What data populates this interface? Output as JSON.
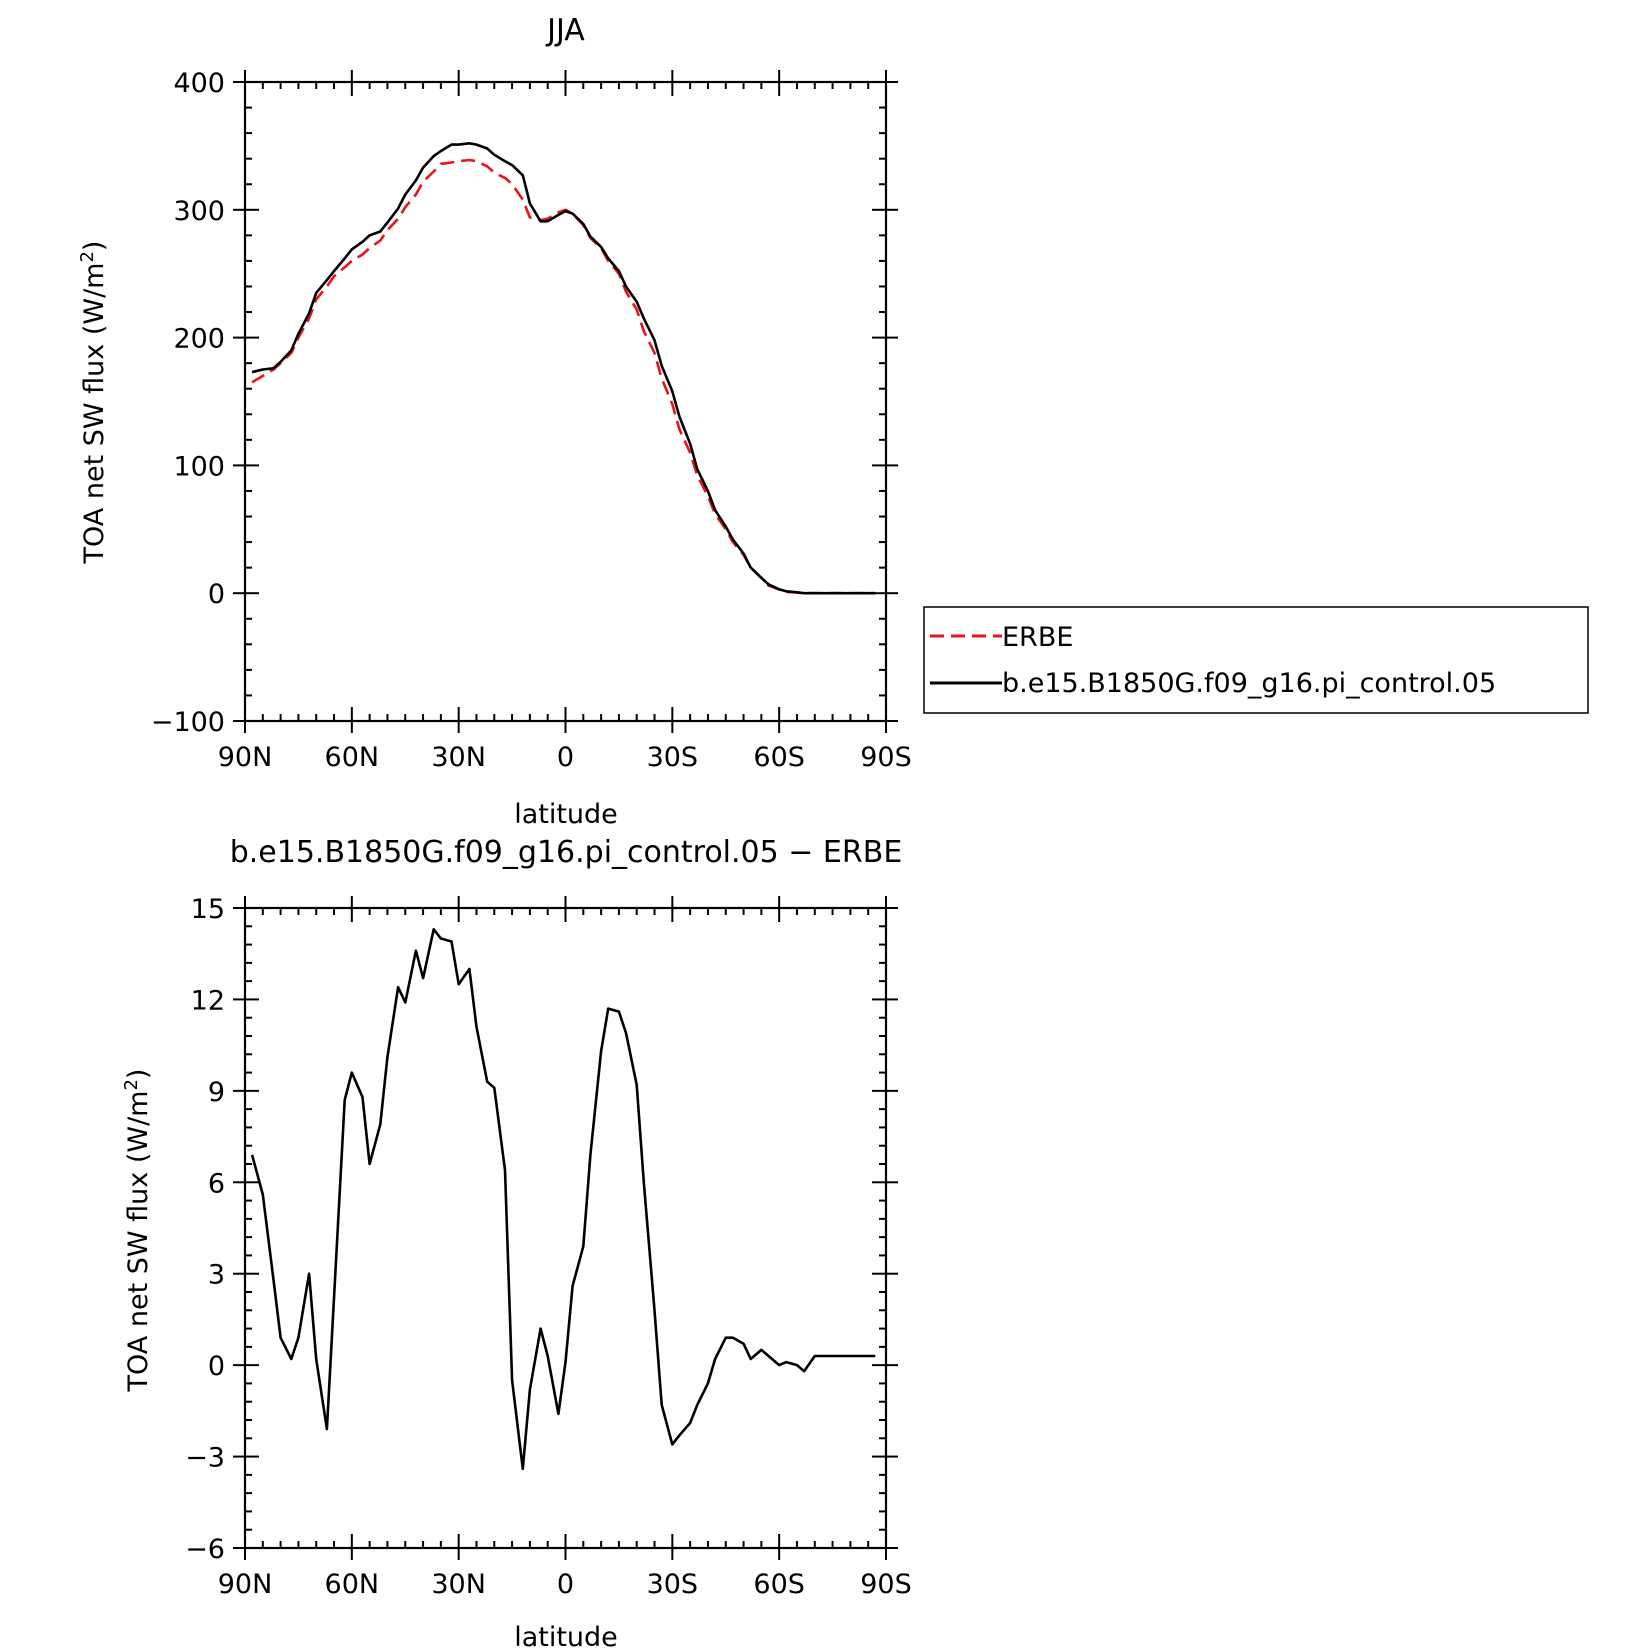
{
  "chart_data": [
    {
      "type": "line",
      "title": "JJA",
      "xlabel": "latitude",
      "ylabel": "TOA net SW flux (W/m²)",
      "ylabel_parts": {
        "pre": "TOA net SW flux (W/m",
        "sup": "2",
        "post": ")"
      },
      "xlim": [
        90,
        -90
      ],
      "ylim": [
        -100,
        400
      ],
      "xticks": [
        90,
        60,
        30,
        0,
        -30,
        -60,
        -90
      ],
      "xticklabels": [
        "90N",
        "60N",
        "30N",
        "0",
        "30S",
        "60S",
        "90S"
      ],
      "yticks": [
        -100,
        0,
        100,
        200,
        300,
        400
      ],
      "yticklabels": [
        "−100",
        "0",
        "100",
        "200",
        "300",
        "400"
      ],
      "grid": false,
      "legend": {
        "position": "right",
        "entries": [
          "ERBE",
          "b.e15.B1850G.f09_g16.pi_control.05"
        ]
      },
      "series": [
        {
          "name": "ERBE",
          "color": "#e8141b",
          "dash": "dashed",
          "x": [
            88,
            85,
            82,
            80,
            77,
            75,
            72,
            70,
            67,
            65,
            62,
            60,
            57,
            55,
            52,
            50,
            47,
            45,
            42,
            40,
            37,
            35,
            32,
            30,
            27,
            25,
            22,
            20,
            17,
            15,
            12,
            10,
            7,
            5,
            2,
            0,
            -2,
            -5,
            -7,
            -10,
            -12,
            -15,
            -17,
            -20,
            -22,
            -25,
            -27,
            -30,
            -32,
            -35,
            -37,
            -40,
            -42,
            -45,
            -47,
            -50,
            -52,
            -55,
            -57,
            -60,
            -62,
            -65,
            -67,
            -70,
            -72,
            -75,
            -77,
            -80,
            -82,
            -85,
            -87
          ],
          "y": [
            165,
            170,
            175,
            180,
            188,
            200,
            215,
            230,
            240,
            248,
            255,
            260,
            265,
            270,
            276,
            284,
            293,
            302,
            312,
            322,
            330,
            336,
            337,
            338,
            339,
            338,
            334,
            329,
            325,
            320,
            308,
            294,
            292,
            293,
            298,
            300,
            297,
            288,
            278,
            270,
            260,
            250,
            236,
            222,
            205,
            188,
            168,
            148,
            128,
            110,
            92,
            76,
            62,
            50,
            40,
            30,
            20,
            12,
            6,
            3,
            1,
            0.5,
            0,
            0,
            0,
            0,
            0,
            0,
            0,
            0,
            0
          ]
        },
        {
          "name": "b.e15.B1850G.f09_g16.pi_control.05",
          "color": "#000000",
          "dash": "solid",
          "x": [
            88,
            85,
            82,
            80,
            77,
            75,
            72,
            70,
            67,
            65,
            62,
            60,
            57,
            55,
            52,
            50,
            47,
            45,
            42,
            40,
            37,
            35,
            32,
            30,
            27,
            25,
            22,
            20,
            17,
            15,
            12,
            10,
            7,
            5,
            2,
            0,
            -2,
            -5,
            -7,
            -10,
            -12,
            -15,
            -17,
            -20,
            -22,
            -25,
            -27,
            -30,
            -32,
            -35,
            -37,
            -40,
            -42,
            -45,
            -47,
            -50,
            -52,
            -55,
            -57,
            -60,
            -62,
            -65,
            -67,
            -70,
            -72,
            -75,
            -77,
            -80,
            -82,
            -85,
            -87
          ],
          "y": [
            173,
            175,
            176,
            181,
            190,
            203,
            219,
            235,
            245,
            252,
            262,
            269,
            275,
            280,
            283,
            290,
            301,
            312,
            323,
            333,
            342,
            346,
            351,
            351,
            352,
            351,
            348,
            343,
            338,
            335,
            327,
            305,
            291,
            291,
            296,
            299,
            297,
            289,
            279,
            271,
            262,
            252,
            240,
            228,
            215,
            198,
            178,
            158,
            138,
            117,
            97,
            80,
            65,
            52,
            42,
            31,
            20,
            12,
            7,
            3,
            1.5,
            0.7,
            0,
            0,
            0,
            0,
            0,
            0,
            0,
            0,
            0
          ]
        }
      ]
    },
    {
      "type": "line",
      "title": "b.e15.B1850G.f09_g16.pi_control.05 − ERBE",
      "xlabel": "latitude",
      "ylabel": "TOA net SW flux (W/m²)",
      "ylabel_parts": {
        "pre": "TOA net SW flux (W/m",
        "sup": "2",
        "post": ")"
      },
      "xlim": [
        90,
        -90
      ],
      "ylim": [
        -6,
        15
      ],
      "xticks": [
        90,
        60,
        30,
        0,
        -30,
        -60,
        -90
      ],
      "xticklabels": [
        "90N",
        "60N",
        "30N",
        "0",
        "30S",
        "60S",
        "90S"
      ],
      "yticks": [
        -6,
        -3,
        0,
        3,
        6,
        9,
        12,
        15
      ],
      "yticklabels": [
        "−6",
        "−3",
        "0",
        "3",
        "6",
        "9",
        "12",
        "15"
      ],
      "grid": false,
      "series": [
        {
          "color": "#000000",
          "dash": "solid",
          "x": [
            88,
            85,
            82,
            80,
            77,
            75,
            72,
            70,
            67,
            65,
            62,
            60,
            57,
            55,
            52,
            50,
            47,
            45,
            42,
            40,
            37,
            35,
            32,
            30,
            27,
            25,
            22,
            20,
            17,
            15,
            12,
            10,
            7,
            5,
            2,
            0,
            -2,
            -5,
            -7,
            -10,
            -12,
            -15,
            -17,
            -20,
            -22,
            -25,
            -27,
            -30,
            -32,
            -35,
            -37,
            -40,
            -42,
            -45,
            -47,
            -50,
            -52,
            -55,
            -57,
            -60,
            -62,
            -65,
            -67,
            -70,
            -72,
            -75,
            -77,
            -80,
            -82,
            -85,
            -87
          ],
          "y": [
            6.9,
            5.6,
            2.8,
            0.9,
            0.2,
            0.9,
            3.0,
            0.2,
            -2.1,
            2.2,
            8.7,
            9.6,
            8.8,
            6.6,
            7.9,
            10.1,
            12.4,
            11.9,
            13.6,
            12.7,
            14.3,
            14.0,
            13.9,
            12.5,
            13.0,
            11.1,
            9.3,
            9.1,
            6.4,
            -0.5,
            -3.4,
            -0.8,
            1.2,
            0.3,
            -1.6,
            0.1,
            2.6,
            3.9,
            6.9,
            10.3,
            11.7,
            11.6,
            10.9,
            9.2,
            6.0,
            1.8,
            -1.3,
            -2.6,
            -2.3,
            -1.9,
            -1.3,
            -0.6,
            0.2,
            0.9,
            0.9,
            0.7,
            0.2,
            0.5,
            0.3,
            0.0,
            0.1,
            0.0,
            -0.2,
            0.3,
            0.3,
            0.3,
            0.3,
            0.3,
            0.3,
            0.3,
            0.3
          ]
        }
      ]
    }
  ]
}
